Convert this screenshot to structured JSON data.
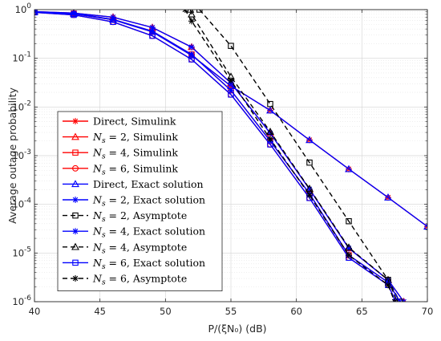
{
  "chart_data": {
    "type": "line",
    "title": "",
    "xlabel": "P/(ξN₀) (dB)",
    "ylabel": "Average outage probability",
    "xlim": [
      40,
      70
    ],
    "ylim": [
      1e-06,
      1
    ],
    "yscale": "log",
    "grid": true,
    "legend_position": "lower-left",
    "xticks": [
      40,
      45,
      50,
      55,
      60,
      65,
      70
    ],
    "yticks": [
      "10^0",
      "10^-1",
      "10^-2",
      "10^-3",
      "10^-4",
      "10^-5",
      "10^-6"
    ],
    "series": [
      {
        "name": "Direct, Simulink",
        "color": "#ff0000",
        "marker": "star",
        "dash": "solid",
        "x": [
          40,
          43,
          46,
          49,
          52,
          55,
          58,
          61,
          64,
          67,
          70
        ],
        "y": [
          0.9,
          0.82,
          0.62,
          0.35,
          0.115,
          0.027,
          0.0085,
          0.0021,
          0.00053,
          0.000138,
          3.5e-05
        ]
      },
      {
        "name": "Ns = 2, Simulink",
        "color": "#ff0000",
        "marker": "triangle",
        "dash": "solid",
        "x": [
          40,
          43,
          46,
          49,
          52,
          55,
          58,
          61,
          64,
          67,
          68.2
        ],
        "y": [
          0.91,
          0.85,
          0.7,
          0.43,
          0.17,
          0.031,
          0.0029,
          0.000205,
          1.25e-05,
          2.8e-06,
          1e-06
        ]
      },
      {
        "name": "Ns = 4, Simulink",
        "color": "#ff0000",
        "marker": "square",
        "dash": "solid",
        "x": [
          40,
          43,
          46,
          49,
          52,
          55,
          58,
          61,
          64,
          67,
          67.9
        ],
        "y": [
          0.9,
          0.83,
          0.63,
          0.36,
          0.12,
          0.022,
          0.002,
          0.000165,
          9e-06,
          2.5e-06,
          1e-06
        ]
      },
      {
        "name": "Ns = 6, Simulink",
        "color": "#ff0000",
        "marker": "circle",
        "dash": "solid",
        "x": [
          40,
          43,
          46,
          49,
          52,
          55,
          58,
          61,
          64,
          67,
          67.6
        ],
        "y": [
          0.88,
          0.78,
          0.56,
          0.29,
          0.095,
          0.018,
          0.0017,
          0.000135,
          8e-06,
          2.2e-06,
          1e-06
        ]
      },
      {
        "name": "Direct, Exact solution",
        "color": "#0000ff",
        "marker": "triangle",
        "dash": "solid",
        "x": [
          40,
          43,
          46,
          49,
          52,
          55,
          58,
          61,
          64,
          67,
          70
        ],
        "y": [
          0.9,
          0.82,
          0.62,
          0.35,
          0.115,
          0.027,
          0.0085,
          0.0021,
          0.00053,
          0.000138,
          3.5e-05
        ]
      },
      {
        "name": "Ns = 2, Exact solution",
        "color": "#0000ff",
        "marker": "star",
        "dash": "solid",
        "x": [
          40,
          43,
          46,
          49,
          52,
          55,
          58,
          61,
          64,
          67,
          68.2
        ],
        "y": [
          0.91,
          0.85,
          0.7,
          0.43,
          0.17,
          0.031,
          0.0029,
          0.000205,
          1.25e-05,
          2.8e-06,
          1e-06
        ]
      },
      {
        "name": "Ns = 2, Asymptote",
        "color": "#000000",
        "marker": "square",
        "dash": "dashed",
        "x": [
          52.6,
          55,
          58,
          61,
          64,
          67,
          67.9
        ],
        "y": [
          1,
          0.18,
          0.0115,
          0.00072,
          4.5e-05,
          2.8e-06,
          1e-06
        ]
      },
      {
        "name": "Ns = 4, Exact solution",
        "color": "#0000ff",
        "marker": "star",
        "dash": "solid",
        "x": [
          40,
          43,
          46,
          49,
          52,
          55,
          58,
          61,
          64,
          67,
          67.9
        ],
        "y": [
          0.9,
          0.83,
          0.63,
          0.36,
          0.12,
          0.022,
          0.002,
          0.000165,
          9e-06,
          2.5e-06,
          1e-06
        ]
      },
      {
        "name": "Ns = 4, Asymptote",
        "color": "#000000",
        "marker": "triangle",
        "dash": "dashed",
        "x": [
          51.9,
          52,
          55,
          58,
          61,
          64,
          67,
          67.7
        ],
        "y": [
          1,
          0.8,
          0.042,
          0.0031,
          0.00021,
          1.3e-05,
          2.8e-06,
          1e-06
        ]
      },
      {
        "name": "Ns = 6, Exact solution",
        "color": "#0000ff",
        "marker": "square",
        "dash": "solid",
        "x": [
          40,
          43,
          46,
          49,
          52,
          55,
          58,
          61,
          64,
          67,
          67.6
        ],
        "y": [
          0.88,
          0.78,
          0.56,
          0.29,
          0.095,
          0.018,
          0.0017,
          0.000135,
          8e-06,
          2.2e-06,
          1e-06
        ]
      },
      {
        "name": "Ns = 6, Asymptote",
        "color": "#000000",
        "marker": "star",
        "dash": "dashed",
        "x": [
          51.5,
          52,
          55,
          58,
          61,
          64,
          67,
          67.5
        ],
        "y": [
          1,
          0.58,
          0.035,
          0.0022,
          0.000155,
          9e-06,
          2.2e-06,
          1e-06
        ]
      }
    ]
  }
}
